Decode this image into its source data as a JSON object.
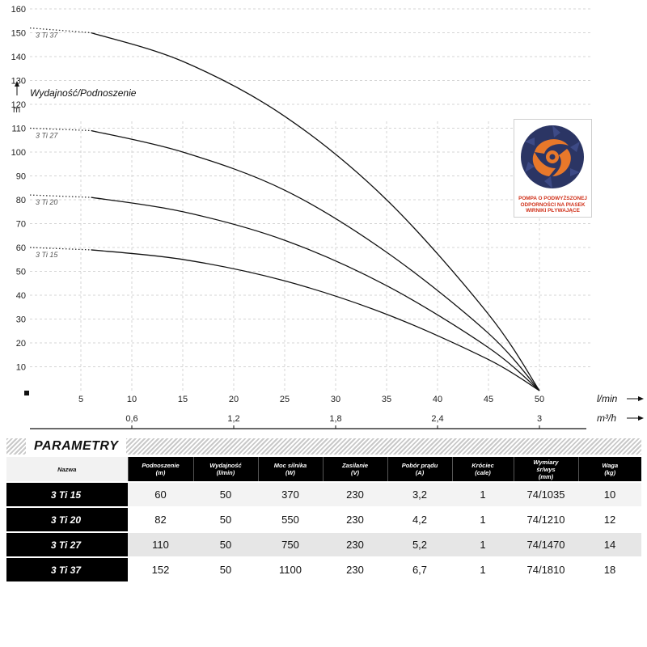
{
  "chart_data": {
    "type": "line",
    "y_axis_title": "Wydajność/Podnoszenie",
    "y_unit": "m",
    "ylim": [
      0,
      165
    ],
    "y_ticks": [
      10,
      20,
      30,
      40,
      50,
      60,
      70,
      80,
      90,
      100,
      110,
      120,
      130,
      140,
      150,
      160
    ],
    "x_unit": "l/min",
    "xlim": [
      0,
      55
    ],
    "x_ticks": [
      5,
      10,
      15,
      20,
      25,
      30,
      35,
      40,
      45,
      50
    ],
    "x2_unit": "m³/h",
    "x2_ticks": [
      {
        "value": "0,6",
        "at": 10
      },
      {
        "value": "1,2",
        "at": 20
      },
      {
        "value": "1,8",
        "at": 30
      },
      {
        "value": "2,4",
        "at": 40
      },
      {
        "value": "3",
        "at": 50
      }
    ],
    "grid": true,
    "series": [
      {
        "name": "3 Ti 37",
        "points": [
          [
            0,
            152
          ],
          [
            6,
            150
          ],
          [
            15,
            138
          ],
          [
            25,
            115
          ],
          [
            35,
            80
          ],
          [
            45,
            32
          ],
          [
            50,
            0
          ]
        ]
      },
      {
        "name": "3 Ti 27",
        "points": [
          [
            0,
            110
          ],
          [
            6,
            109
          ],
          [
            15,
            100
          ],
          [
            25,
            84
          ],
          [
            35,
            58
          ],
          [
            45,
            24
          ],
          [
            50,
            0
          ]
        ]
      },
      {
        "name": "3 Ti 20",
        "points": [
          [
            0,
            82
          ],
          [
            6,
            81
          ],
          [
            15,
            75
          ],
          [
            25,
            63
          ],
          [
            35,
            44
          ],
          [
            45,
            18
          ],
          [
            50,
            0
          ]
        ]
      },
      {
        "name": "3 Ti 15",
        "points": [
          [
            0,
            60
          ],
          [
            6,
            59
          ],
          [
            15,
            55
          ],
          [
            25,
            46
          ],
          [
            35,
            32
          ],
          [
            45,
            13
          ],
          [
            50,
            0
          ]
        ]
      }
    ]
  },
  "logo": {
    "caption_lines": [
      "POMPA O PODWYŻSZONEJ",
      "ODPORNOŚCI NA PIASEK",
      "WIRNIKI PŁYWAJĄCE"
    ],
    "colors": {
      "rotor": "#2b3564",
      "center": "#e8782a",
      "caption": "#d0311a"
    }
  },
  "params": {
    "title": "PARAMETRY",
    "headers": [
      {
        "line1": "Nazwa",
        "line2": ""
      },
      {
        "line1": "Podnoszenie",
        "line2": "(m)"
      },
      {
        "line1": "Wydajność",
        "line2": "(l/min)"
      },
      {
        "line1": "Moc silnika",
        "line2": "(W)"
      },
      {
        "line1": "Zasilanie",
        "line2": "(V)"
      },
      {
        "line1": "Pobór prądu",
        "line2": "(A)"
      },
      {
        "line1": "Króciec",
        "line2": "(cale)"
      },
      {
        "line1": "Wymiary",
        "line2": "śr/wys",
        "line3": "(mm)"
      },
      {
        "line1": "Waga",
        "line2": "(kg)"
      }
    ],
    "rows": [
      {
        "name": "3 Ti 15",
        "podnoszenie": "60",
        "wydajnosc": "50",
        "moc": "370",
        "zasilanie": "230",
        "pobor": "3,2",
        "krociec": "1",
        "wymiary": "74/1035",
        "waga": "10"
      },
      {
        "name": "3 Ti 20",
        "podnoszenie": "82",
        "wydajnosc": "50",
        "moc": "550",
        "zasilanie": "230",
        "pobor": "4,2",
        "krociec": "1",
        "wymiary": "74/1210",
        "waga": "12"
      },
      {
        "name": "3 Ti 27",
        "podnoszenie": "110",
        "wydajnosc": "50",
        "moc": "750",
        "zasilanie": "230",
        "pobor": "5,2",
        "krociec": "1",
        "wymiary": "74/1470",
        "waga": "14"
      },
      {
        "name": "3 Ti 37",
        "podnoszenie": "152",
        "wydajnosc": "50",
        "moc": "1100",
        "zasilanie": "230",
        "pobor": "6,7",
        "krociec": "1",
        "wymiary": "74/1810",
        "waga": "18"
      }
    ]
  }
}
